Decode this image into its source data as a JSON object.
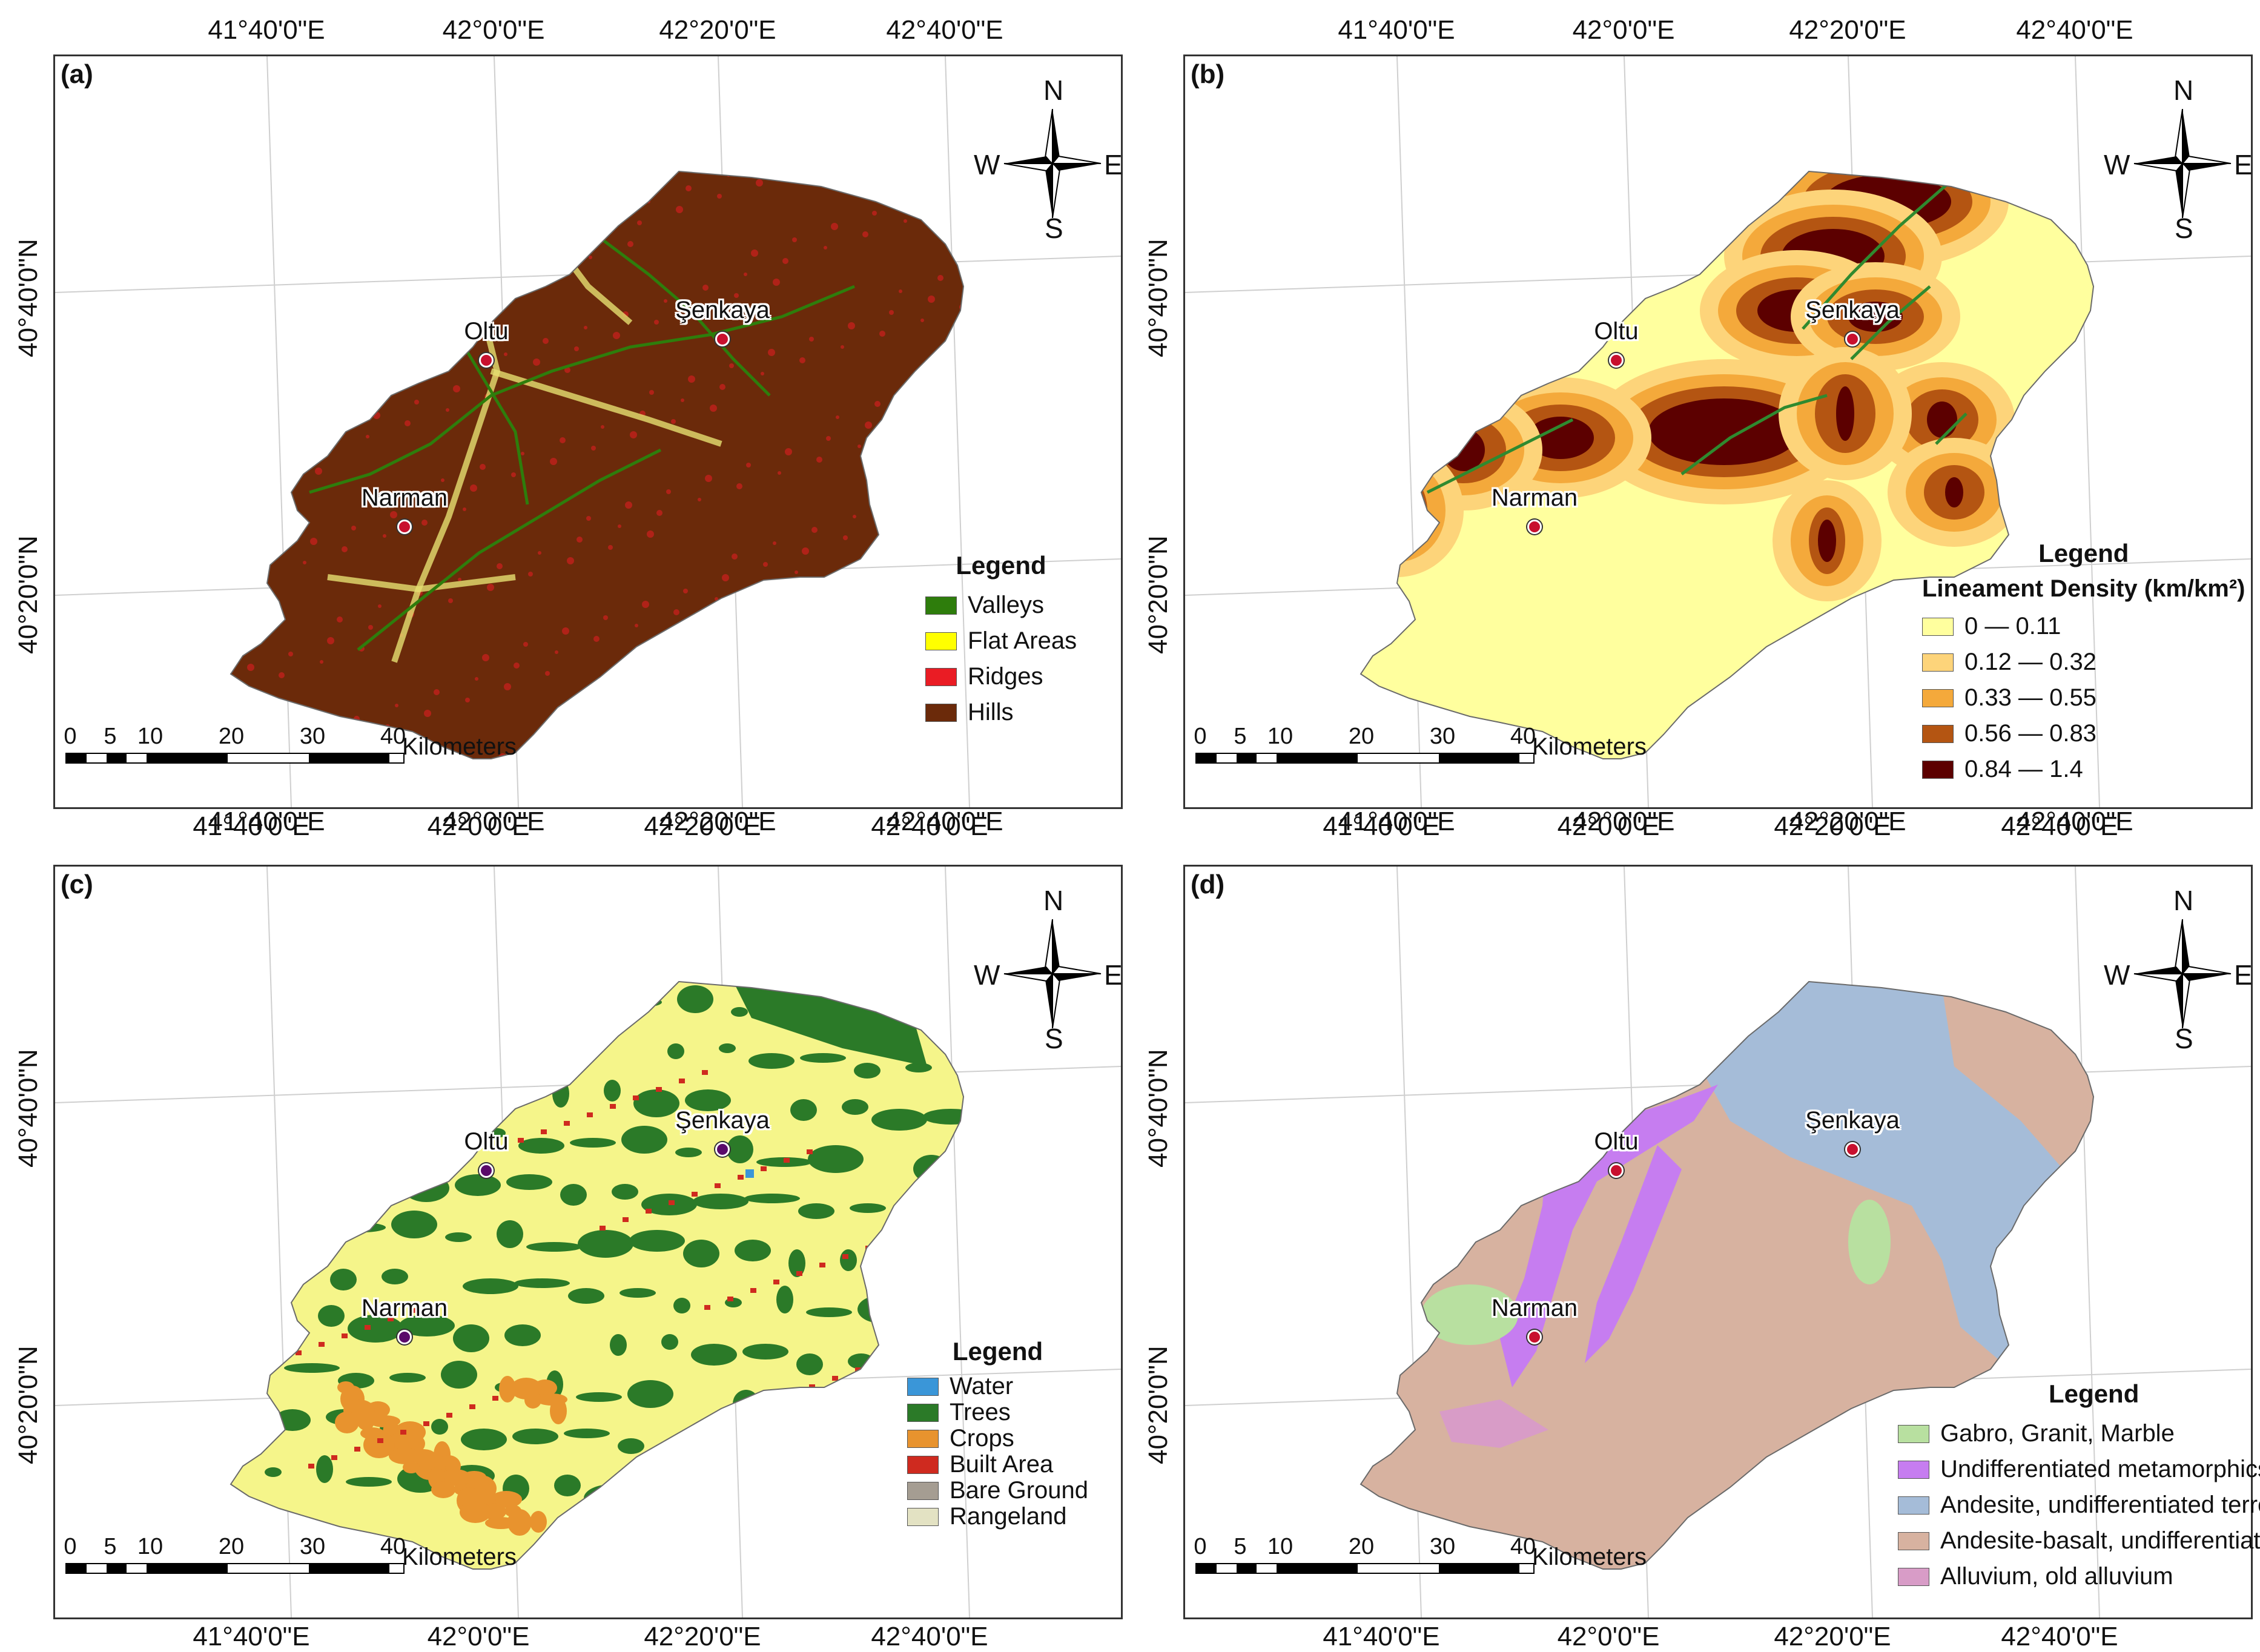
{
  "coords": {
    "lon": [
      "41°40'0\"E",
      "42°0'0\"E",
      "42°20'0\"E",
      "42°40'0\"E"
    ],
    "lat": [
      "40°40'0\"N",
      "40°20'0\"N"
    ]
  },
  "compass": {
    "n": "N",
    "s": "S",
    "e": "E",
    "w": "W"
  },
  "scale": {
    "ticks": [
      "0",
      "5",
      "10",
      "20",
      "30",
      "40"
    ],
    "unit": "Kilometers"
  },
  "cities": {
    "oltu": "Oltu",
    "senkaya": "Şenkaya",
    "narman": "Narman"
  },
  "panels": {
    "a": {
      "label": "(a)",
      "legend_title": "Legend",
      "legend": [
        {
          "label": "Valleys",
          "color": "#2e7d0c"
        },
        {
          "label": "Flat Areas",
          "color": "#ffff00"
        },
        {
          "label": "Ridges",
          "color": "#ea1c24"
        },
        {
          "label": "Hills",
          "color": "#6b2a0a"
        }
      ]
    },
    "b": {
      "label": "(b)",
      "legend_title": "Legend",
      "legend_subtitle": "Lineament Density (km/km²)",
      "legend": [
        {
          "label": "0 — 0.11",
          "color": "#ffff9e"
        },
        {
          "label": "0.12 — 0.32",
          "color": "#fdd47a"
        },
        {
          "label": "0.33 — 0.55",
          "color": "#f4a93b"
        },
        {
          "label": "0.56 — 0.83",
          "color": "#b45512"
        },
        {
          "label": "0.84 — 1.4",
          "color": "#5c0000"
        }
      ]
    },
    "c": {
      "label": "(c)",
      "legend_title": "Legend",
      "legend": [
        {
          "label": "Water",
          "color": "#3a96d8"
        },
        {
          "label": "Trees",
          "color": "#2b7a28"
        },
        {
          "label": "Crops",
          "color": "#e8932e"
        },
        {
          "label": "Built Area",
          "color": "#cf2a1f"
        },
        {
          "label": "Bare Ground",
          "color": "#a59d92"
        },
        {
          "label": "Rangeland",
          "color": "#e3e2c3"
        }
      ]
    },
    "d": {
      "label": "(d)",
      "legend_title": "Legend",
      "legend": [
        {
          "label": "Gabro, Granit, Marble",
          "color": "#b8e0a0"
        },
        {
          "label": "Undifferentiated metamorphics...",
          "color": "#c67df0"
        },
        {
          "label": "Andesite, undifferentiated terres.",
          "color": "#a5bcd8"
        },
        {
          "label": "Andesite-basalt, undifferentiat.",
          "color": "#d7b2a0"
        },
        {
          "label": "Alluvium, old alluvium",
          "color": "#d89cc7"
        }
      ]
    }
  }
}
